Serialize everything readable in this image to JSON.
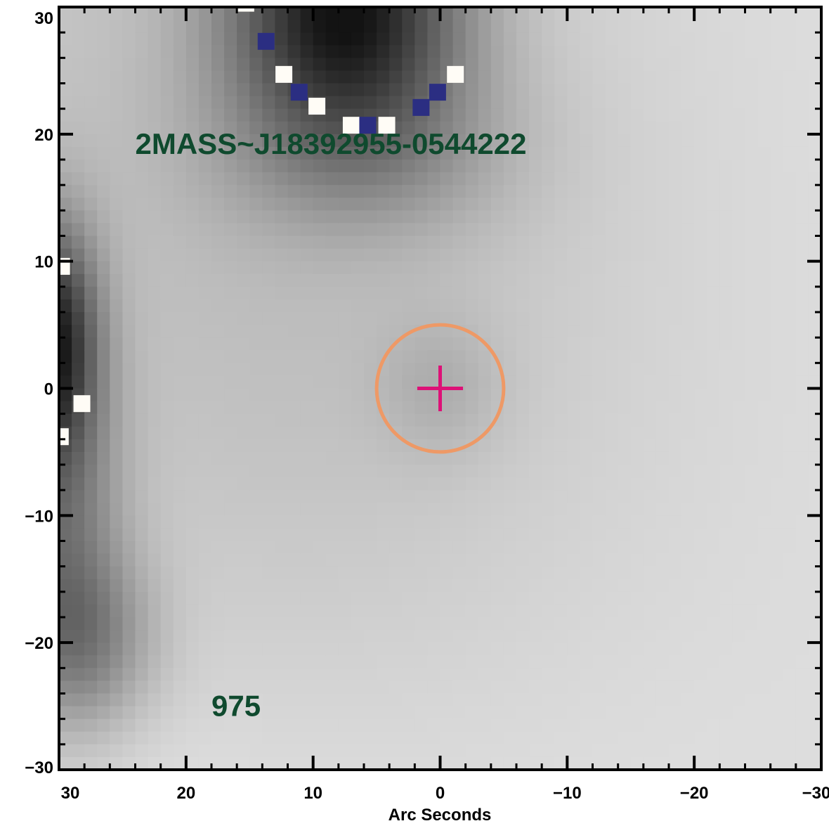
{
  "chart_data": {
    "type": "heatmap",
    "title": "",
    "xlabel": "Arc Seconds",
    "ylabel": "",
    "xlim": [
      30,
      -30
    ],
    "ylim": [
      -30,
      30
    ],
    "x_ticks": [
      30,
      20,
      10,
      0,
      -10,
      -20,
      -30
    ],
    "x_tick_labels": [
      "30",
      "20",
      "10",
      "0",
      "−10",
      "−20",
      "−30"
    ],
    "y_ticks": [
      30,
      20,
      10,
      0,
      -10,
      -20,
      -30
    ],
    "y_tick_labels": [
      "30",
      "20",
      "10",
      "0",
      "−10",
      "−20",
      "−30"
    ],
    "x_minor_step": 2,
    "y_minor_step": 2,
    "colormap": "grayscale-inverted",
    "image_extent": [
      -30,
      30,
      -30,
      30
    ],
    "source_label": "2MASS~J18392955-0544222",
    "source_label_position": [
      24,
      19
    ],
    "id_label": "975",
    "id_label_position": [
      18,
      -25
    ],
    "target": {
      "x": 0,
      "y": 0,
      "circle_radius": 5,
      "cross_half_size": 1.8
    },
    "blobs": [
      {
        "x": 7.5,
        "y": 30,
        "sx": 6.5,
        "sy": 6.5,
        "amp": 0.72
      },
      {
        "x": 6,
        "y": 19,
        "sx": 8,
        "sy": 5,
        "amp": 0.22
      },
      {
        "x": 30.5,
        "y": 4,
        "sx": 2.5,
        "sy": 6.5,
        "amp": 0.62
      },
      {
        "x": 30,
        "y": -10,
        "sx": 3.5,
        "sy": 10,
        "amp": 0.32
      },
      {
        "x": 28,
        "y": -20,
        "sx": 4,
        "sy": 5,
        "amp": 0.28
      },
      {
        "x": 0,
        "y": 0,
        "sx": 3.5,
        "sy": 4,
        "amp": 0.1
      },
      {
        "x": 12,
        "y": 5,
        "sx": 20,
        "sy": 25,
        "amp": 0.12
      }
    ],
    "saturated_pixels": [
      {
        "x": 15.3,
        "y": 30.3,
        "kind": "white"
      },
      {
        "x": 13.7,
        "y": 27.3,
        "kind": "blue"
      },
      {
        "x": 12.3,
        "y": 24.7,
        "kind": "white"
      },
      {
        "x": 11.1,
        "y": 23.3,
        "kind": "blue"
      },
      {
        "x": 9.7,
        "y": 22.2,
        "kind": "white"
      },
      {
        "x": 7.0,
        "y": 20.7,
        "kind": "white"
      },
      {
        "x": 5.7,
        "y": 20.7,
        "kind": "blue"
      },
      {
        "x": 4.2,
        "y": 20.7,
        "kind": "white"
      },
      {
        "x": 1.5,
        "y": 22.1,
        "kind": "blue"
      },
      {
        "x": 0.2,
        "y": 23.3,
        "kind": "blue"
      },
      {
        "x": -1.2,
        "y": 24.7,
        "kind": "white"
      },
      {
        "x": 29.8,
        "y": 9.6,
        "kind": "white"
      },
      {
        "x": 28.2,
        "y": -1.2,
        "kind": "white"
      },
      {
        "x": 29.9,
        "y": -3.8,
        "kind": "white"
      }
    ],
    "colors": {
      "target_circle": "#ee9966",
      "target_cross": "#dd1177",
      "label_text": "#0f4a2e",
      "pixel_white": "#fffcf6",
      "pixel_blue": "#2b2e82",
      "axes": "#000000",
      "background": "#ffffff"
    }
  }
}
